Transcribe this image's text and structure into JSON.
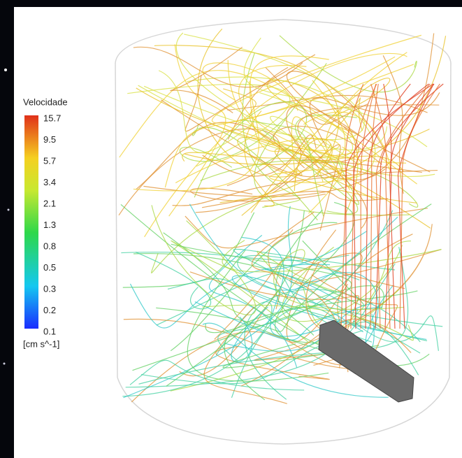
{
  "legend": {
    "title": "Velocidade",
    "ticks": [
      "15.7",
      "9.5",
      "5.7",
      "3.4",
      "2.1",
      "1.3",
      "0.8",
      "0.5",
      "0.3",
      "0.2",
      "0.1"
    ],
    "unit": "[cm s^-1]"
  }
}
